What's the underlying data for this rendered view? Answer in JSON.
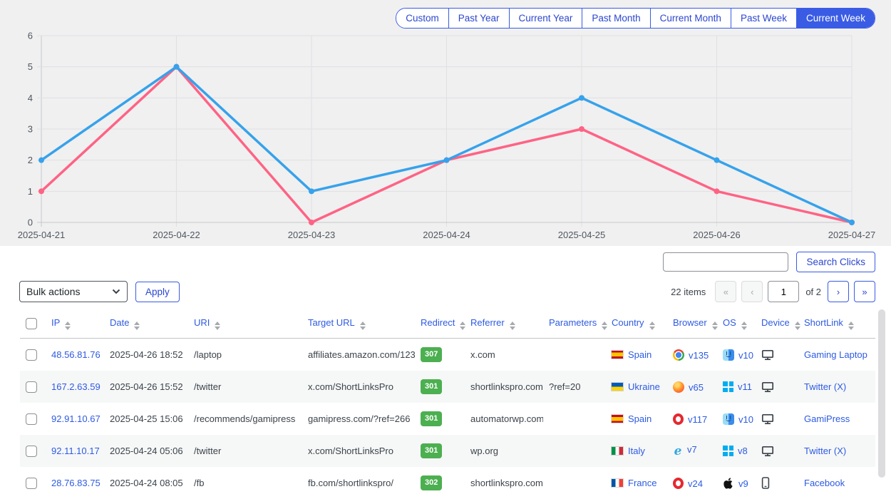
{
  "colors": {
    "accent": "#3a5ce4",
    "link_blue": "#2d5be2",
    "badge_green": "#4caf50"
  },
  "filters": {
    "buttons": [
      "Custom",
      "Past Year",
      "Current Year",
      "Past Month",
      "Current Month",
      "Past Week",
      "Current Week"
    ],
    "active": "Current Week"
  },
  "chart_data": {
    "type": "line",
    "x": [
      "2025-04-21",
      "2025-04-22",
      "2025-04-23",
      "2025-04-24",
      "2025-04-25",
      "2025-04-26",
      "2025-04-27"
    ],
    "series": [
      {
        "name": "blue-series",
        "color": "#36a2eb",
        "values": [
          2,
          5,
          1,
          2,
          4,
          2,
          0
        ]
      },
      {
        "name": "pink-series",
        "color": "#ff6384",
        "values": [
          1,
          5,
          0,
          2,
          3,
          1,
          0
        ]
      }
    ],
    "ylim": [
      0,
      6
    ],
    "yticks": [
      0,
      1,
      2,
      3,
      4,
      5,
      6
    ],
    "grid": true,
    "legend": false,
    "title": "",
    "xlabel": "",
    "ylabel": ""
  },
  "search": {
    "value": "",
    "button_label": "Search Clicks"
  },
  "bulk": {
    "selected": "Bulk actions",
    "apply_label": "Apply"
  },
  "pagination": {
    "items_text": "22 items",
    "first": "«",
    "prev": "‹",
    "page": "1",
    "of_text": "of 2",
    "next": "›",
    "last": "»"
  },
  "table": {
    "columns": [
      "IP",
      "Date",
      "URI",
      "Target URL",
      "Redirect",
      "Referrer",
      "Parameters",
      "Country",
      "Browser",
      "OS",
      "Device",
      "ShortLink"
    ],
    "rows": [
      {
        "ip": "48.56.81.76",
        "date": "2025-04-26 18:52",
        "uri": "/laptop",
        "target_url": "affiliates.amazon.com/123",
        "redirect": "307",
        "referrer": "x.com",
        "parameters": "",
        "country": {
          "flag": "es",
          "name": "Spain"
        },
        "browser": {
          "icon": "chrome",
          "version": "v135"
        },
        "os": {
          "icon": "macos",
          "version": "v10"
        },
        "device": "desktop",
        "shortlink": "Gaming Laptop"
      },
      {
        "ip": "167.2.63.59",
        "date": "2025-04-26 15:52",
        "uri": "/twitter",
        "target_url": "x.com/ShortLinksPro",
        "redirect": "301",
        "referrer": "shortlinkspro.com",
        "parameters": "?ref=20",
        "country": {
          "flag": "ua",
          "name": "Ukraine"
        },
        "browser": {
          "icon": "firefox",
          "version": "v65"
        },
        "os": {
          "icon": "windows",
          "version": "v11"
        },
        "device": "desktop",
        "shortlink": "Twitter (X)"
      },
      {
        "ip": "92.91.10.67",
        "date": "2025-04-25 15:06",
        "uri": "/recommends/gamipress",
        "target_url": "gamipress.com/?ref=266",
        "redirect": "301",
        "referrer": "automatorwp.com",
        "parameters": "",
        "country": {
          "flag": "es",
          "name": "Spain"
        },
        "browser": {
          "icon": "opera",
          "version": "v117"
        },
        "os": {
          "icon": "macos",
          "version": "v10"
        },
        "device": "desktop",
        "shortlink": "GamiPress"
      },
      {
        "ip": "92.11.10.17",
        "date": "2025-04-24 05:06",
        "uri": "/twitter",
        "target_url": "x.com/ShortLinksPro",
        "redirect": "301",
        "referrer": "wp.org",
        "parameters": "",
        "country": {
          "flag": "it",
          "name": "Italy"
        },
        "browser": {
          "icon": "ie",
          "version": "v7"
        },
        "os": {
          "icon": "windows",
          "version": "v8"
        },
        "device": "desktop",
        "shortlink": "Twitter (X)"
      },
      {
        "ip": "28.76.83.75",
        "date": "2025-04-24 08:05",
        "uri": "/fb",
        "target_url": "fb.com/shortlinkspro/",
        "redirect": "302",
        "referrer": "shortlinkspro.com",
        "parameters": "",
        "country": {
          "flag": "fr",
          "name": "France"
        },
        "browser": {
          "icon": "opera",
          "version": "v24"
        },
        "os": {
          "icon": "apple",
          "version": "v9"
        },
        "device": "mobile",
        "shortlink": "Facebook"
      }
    ]
  }
}
